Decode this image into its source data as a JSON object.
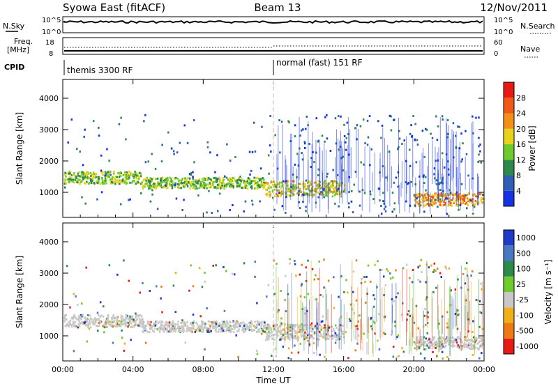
{
  "header": {
    "title_left": "Syowa East (fitACF)",
    "title_center": "Beam 13",
    "title_right": "12/Nov/2011"
  },
  "status_panels": {
    "nsky_label": "N.Sky",
    "nsearch_label": "N.Search",
    "nsky_ticks": [
      "10^5",
      "10^0"
    ],
    "nsearch_ticks": [
      "10^5",
      "10^0"
    ],
    "freq_label_1": "Freq.",
    "freq_label_2": "[MHz]",
    "freq_ticks": [
      "18",
      "8"
    ],
    "nave_label": "Nave",
    "nave_ticks": [
      "60",
      "0"
    ],
    "cpid_label": "CPID",
    "cpid_segments": [
      {
        "label": "themis 3300 RF",
        "start_hour": 0
      },
      {
        "label": "normal (fast) 151 RF",
        "start_hour": 12
      }
    ]
  },
  "chart_data": [
    {
      "type": "heatmap",
      "title": "",
      "xlabel": "",
      "ylabel": "Slant Range [km]",
      "xlim": [
        0,
        24
      ],
      "ylim": [
        200,
        4600
      ],
      "yticks": [
        "1000",
        "2000",
        "3000",
        "4000"
      ],
      "colorbar_label": "Power [dB]",
      "colorbar_ticks": [
        "4",
        "8",
        "12",
        "16",
        "20",
        "24",
        "28"
      ],
      "colorbar_colors": [
        "#1432e6",
        "#2f5fb4",
        "#2e8a4a",
        "#6ecb2c",
        "#e8d21c",
        "#f39018",
        "#ef5a14",
        "#e81a16"
      ],
      "echo_regions_km": [
        {
          "hours": [
            0,
            4.5
          ],
          "range": [
            1300,
            1700
          ],
          "level": 3
        },
        {
          "hours": [
            4.5,
            11.5
          ],
          "range": [
            1150,
            1500
          ],
          "level": 3
        },
        {
          "hours": [
            11.5,
            16
          ],
          "range": [
            900,
            1400
          ],
          "level": 4
        },
        {
          "hours": [
            20,
            24
          ],
          "range": [
            600,
            1000
          ],
          "level": 5
        }
      ]
    },
    {
      "type": "heatmap",
      "title": "",
      "xlabel": "Time UT",
      "ylabel": "Slant Range [km]",
      "xlim": [
        0,
        24
      ],
      "ylim": [
        200,
        4600
      ],
      "xticks": [
        "00:00",
        "04:00",
        "08:00",
        "12:00",
        "16:00",
        "20:00",
        "00:00"
      ],
      "yticks": [
        "1000",
        "2000",
        "3000",
        "4000"
      ],
      "colorbar_label": "Velocity [m s⁻¹]",
      "colorbar_ticks": [
        "1000",
        "500",
        "100",
        "25",
        "-25",
        "-100",
        "-500",
        "-1000"
      ],
      "colorbar_colors": [
        "#1e3cc8",
        "#4a78c0",
        "#2e8a4a",
        "#6ecb2c",
        "#c8c8c8",
        "#f0b018",
        "#ef7a14",
        "#e81a16"
      ]
    }
  ]
}
